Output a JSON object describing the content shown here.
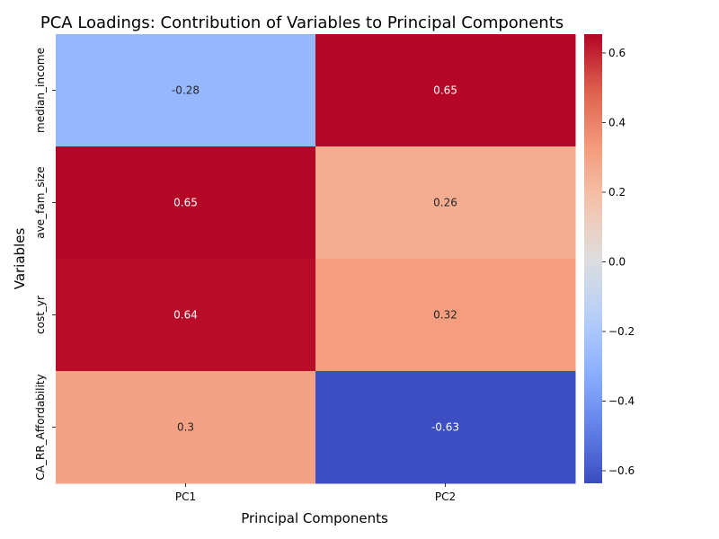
{
  "chart_data": {
    "type": "heatmap",
    "title": "PCA Loadings: Contribution of Variables to Principal Components",
    "xlabel": "Principal Components",
    "ylabel": "Variables",
    "columns": [
      "PC1",
      "PC2"
    ],
    "rows": [
      "median_income",
      "ave_fam_size",
      "cost_yr",
      "CA_RR_Affordability"
    ],
    "values": [
      [
        -0.28,
        0.65
      ],
      [
        0.65,
        0.26
      ],
      [
        0.64,
        0.32
      ],
      [
        0.3,
        -0.63
      ]
    ],
    "annotations": [
      [
        "-0.28",
        "0.65"
      ],
      [
        "0.65",
        "0.26"
      ],
      [
        "0.64",
        "0.32"
      ],
      [
        "0.3",
        "-0.63"
      ]
    ],
    "colormap": "coolwarm",
    "vmin": -0.636,
    "vmax": 0.654,
    "colorbar_ticks": [
      0.6,
      0.4,
      0.2,
      0.0,
      -0.2,
      -0.4,
      -0.6
    ],
    "colorbar_tick_labels": [
      "0.6",
      "0.4",
      "0.2",
      "0.0",
      "−0.2",
      "−0.4",
      "−0.6"
    ],
    "annotation_colors": {
      "light": "#ffffff",
      "dark": "#262626"
    }
  }
}
